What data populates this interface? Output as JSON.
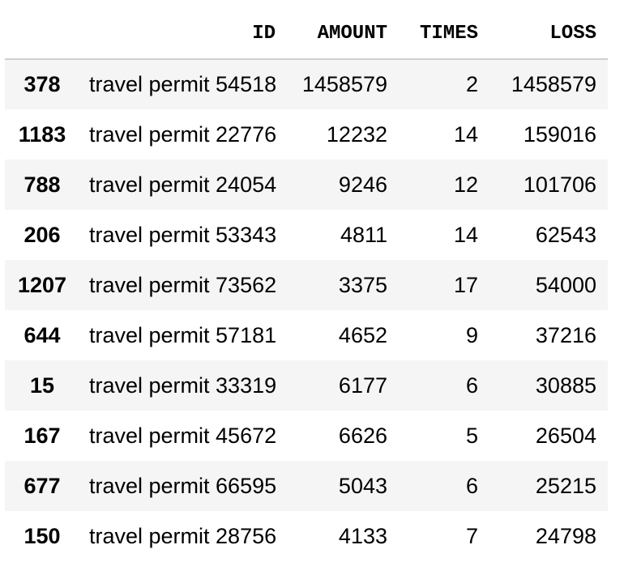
{
  "table": {
    "headers": {
      "index": "",
      "id": "ID",
      "amount": "AMOUNT",
      "times": "TIMES",
      "loss": "LOSS"
    },
    "rows": [
      {
        "index": "378",
        "id": "travel permit 54518",
        "amount": "1458579",
        "times": "2",
        "loss": "1458579"
      },
      {
        "index": "1183",
        "id": "travel permit 22776",
        "amount": "12232",
        "times": "14",
        "loss": "159016"
      },
      {
        "index": "788",
        "id": "travel permit 24054",
        "amount": "9246",
        "times": "12",
        "loss": "101706"
      },
      {
        "index": "206",
        "id": "travel permit 53343",
        "amount": "4811",
        "times": "14",
        "loss": "62543"
      },
      {
        "index": "1207",
        "id": "travel permit 73562",
        "amount": "3375",
        "times": "17",
        "loss": "54000"
      },
      {
        "index": "644",
        "id": "travel permit 57181",
        "amount": "4652",
        "times": "9",
        "loss": "37216"
      },
      {
        "index": "15",
        "id": "travel permit 33319",
        "amount": "6177",
        "times": "6",
        "loss": "30885"
      },
      {
        "index": "167",
        "id": "travel permit 45672",
        "amount": "6626",
        "times": "5",
        "loss": "26504"
      },
      {
        "index": "677",
        "id": "travel permit 66595",
        "amount": "5043",
        "times": "6",
        "loss": "25215"
      },
      {
        "index": "150",
        "id": "travel permit 28756",
        "amount": "4133",
        "times": "7",
        "loss": "24798"
      }
    ]
  }
}
